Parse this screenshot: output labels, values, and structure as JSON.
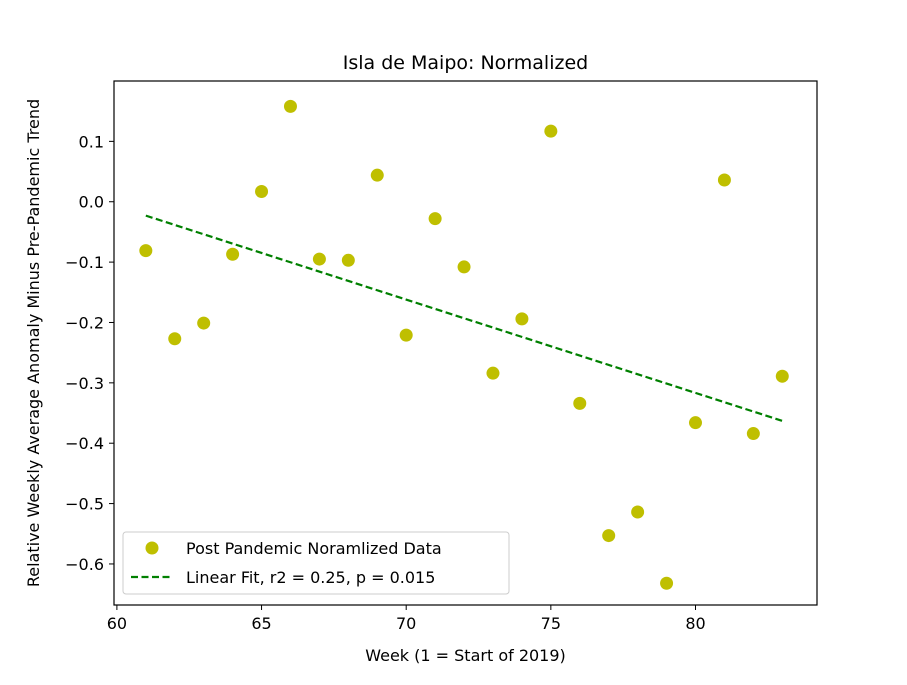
{
  "chart_data": {
    "type": "scatter",
    "title": "Isla de Maipo: Normalized",
    "xlabel": "Week (1 = Start of 2019)",
    "ylabel": "Relative Weekly Average Anomaly Minus Pre-Pandemic Trend",
    "xlim": [
      59.9,
      84.2
    ],
    "ylim": [
      -0.668,
      0.2
    ],
    "xticks": [
      60,
      65,
      70,
      75,
      80
    ],
    "xtick_labels": [
      "60",
      "65",
      "70",
      "75",
      "80"
    ],
    "yticks": [
      0.1,
      0.0,
      -0.1,
      -0.2,
      -0.3,
      -0.4,
      -0.5,
      -0.6
    ],
    "ytick_labels": [
      "0.1",
      "0.0",
      "−0.1",
      "−0.2",
      "−0.3",
      "−0.4",
      "−0.5",
      "−0.6"
    ],
    "grid": false,
    "legend_position": "lower-left",
    "series": [
      {
        "name": "Post Pandemic Noramlized Data",
        "kind": "scatter",
        "color": "#bfbf00",
        "x": [
          61,
          62,
          63,
          64,
          65,
          66,
          67,
          68,
          69,
          70,
          71,
          72,
          73,
          74,
          75,
          76,
          77,
          78,
          79,
          80,
          81,
          82,
          83
        ],
        "y": [
          -0.081,
          -0.227,
          -0.201,
          -0.087,
          0.017,
          0.158,
          -0.095,
          -0.097,
          0.044,
          -0.221,
          -0.028,
          -0.108,
          -0.284,
          -0.194,
          0.117,
          -0.334,
          -0.553,
          -0.514,
          -0.632,
          -0.366,
          0.036,
          -0.384,
          -0.289
        ]
      },
      {
        "name": "Linear Fit, r2 = 0.25, p = 0.015",
        "kind": "line",
        "style": "dashed",
        "color": "#008000",
        "x": [
          61,
          83
        ],
        "y": [
          -0.023,
          -0.363
        ]
      }
    ]
  }
}
